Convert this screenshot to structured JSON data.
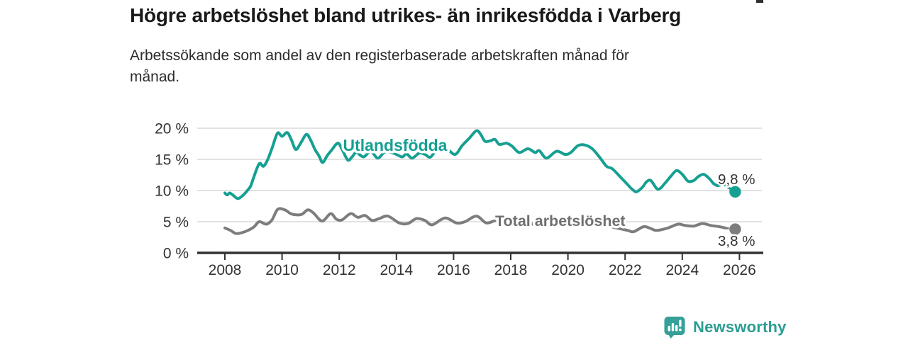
{
  "page": {
    "title": "Högre arbetslöshet bland utrikes- än inrikesfödda i Varberg",
    "subtitle": "Arbetssökande som andel av den registerbaserade arbetskraften månad för\nmånad.",
    "branding": {
      "logo_text": "Newsworthy",
      "logo_icon": "newsworthy-speech-bubble-bar-chart-icon",
      "logo_color": "#35a098",
      "logo_text_color": "#2c9d93"
    }
  },
  "chart_data": {
    "type": "line",
    "title": "Högre arbetslöshet bland utrikes- än inrikesfödda i Varberg",
    "subtitle": "Arbetssökande som andel av den registerbaserade arbetskraften månad för månad.",
    "grid": "horizontal",
    "legend": "inline-labels",
    "x_axis": {
      "ticks": [
        2008,
        2010,
        2012,
        2014,
        2016,
        2018,
        2020,
        2022,
        2024,
        2026
      ],
      "range": [
        2007.85,
        2026.7
      ]
    },
    "y_axis": {
      "ticks": [
        0,
        5,
        10,
        15,
        20
      ],
      "tick_labels": [
        "0 %",
        "5 %",
        "10 %",
        "15 %",
        "20 %"
      ],
      "range": [
        0,
        20
      ],
      "unit": "%"
    },
    "colors": {
      "axis": "#333333",
      "gridline": "#d9d9d9",
      "value_label": "#333333"
    },
    "series": [
      {
        "name": "Utlandsfödda",
        "color": "#16a092",
        "label_color": "#16a092",
        "end_label": "9,8 %",
        "latest_value": 9.8,
        "dashed_tail": true,
        "end_dot": [
          2025.85,
          9.8
        ],
        "points": [
          [
            2008.0,
            9.6
          ],
          [
            2008.08,
            9.3
          ],
          [
            2008.17,
            9.6
          ],
          [
            2008.3,
            9.2
          ],
          [
            2008.45,
            8.7
          ],
          [
            2008.6,
            9.1
          ],
          [
            2008.75,
            9.8
          ],
          [
            2008.9,
            10.7
          ],
          [
            2009.0,
            12.0
          ],
          [
            2009.2,
            14.3
          ],
          [
            2009.35,
            13.9
          ],
          [
            2009.5,
            15.0
          ],
          [
            2009.65,
            16.8
          ],
          [
            2009.84,
            19.2
          ],
          [
            2010.0,
            18.7
          ],
          [
            2010.18,
            19.3
          ],
          [
            2010.32,
            18.2
          ],
          [
            2010.48,
            16.6
          ],
          [
            2010.65,
            17.6
          ],
          [
            2010.85,
            19.0
          ],
          [
            2011.0,
            18.1
          ],
          [
            2011.15,
            16.6
          ],
          [
            2011.3,
            15.5
          ],
          [
            2011.42,
            14.5
          ],
          [
            2011.58,
            15.6
          ],
          [
            2011.72,
            16.4
          ],
          [
            2011.95,
            17.6
          ],
          [
            2012.1,
            16.6
          ],
          [
            2012.3,
            14.9
          ],
          [
            2012.45,
            15.4
          ],
          [
            2012.6,
            16.1
          ],
          [
            2012.85,
            15.4
          ],
          [
            2013.1,
            16.3
          ],
          [
            2013.35,
            15.2
          ],
          [
            2013.6,
            16.2
          ],
          [
            2013.9,
            16.0
          ],
          [
            2014.2,
            15.4
          ],
          [
            2014.35,
            15.9
          ],
          [
            2014.55,
            15.2
          ],
          [
            2014.8,
            16.0
          ],
          [
            2015.0,
            15.8
          ],
          [
            2015.2,
            15.4
          ],
          [
            2015.5,
            17.2
          ],
          [
            2015.75,
            16.8
          ],
          [
            2016.05,
            15.8
          ],
          [
            2016.3,
            17.2
          ],
          [
            2016.55,
            18.4
          ],
          [
            2016.8,
            19.6
          ],
          [
            2016.95,
            19.0
          ],
          [
            2017.1,
            17.9
          ],
          [
            2017.3,
            18.0
          ],
          [
            2017.45,
            18.2
          ],
          [
            2017.6,
            17.4
          ],
          [
            2017.85,
            17.6
          ],
          [
            2018.05,
            17.1
          ],
          [
            2018.3,
            16.1
          ],
          [
            2018.6,
            16.7
          ],
          [
            2018.85,
            16.1
          ],
          [
            2019.0,
            16.4
          ],
          [
            2019.25,
            15.2
          ],
          [
            2019.6,
            16.3
          ],
          [
            2019.9,
            15.8
          ],
          [
            2020.1,
            16.1
          ],
          [
            2020.35,
            17.2
          ],
          [
            2020.6,
            17.3
          ],
          [
            2020.85,
            16.7
          ],
          [
            2021.1,
            15.4
          ],
          [
            2021.35,
            13.9
          ],
          [
            2021.55,
            13.5
          ],
          [
            2021.85,
            12.1
          ],
          [
            2022.1,
            10.9
          ],
          [
            2022.25,
            10.2
          ],
          [
            2022.4,
            9.8
          ],
          [
            2022.6,
            10.5
          ],
          [
            2022.75,
            11.4
          ],
          [
            2022.9,
            11.6
          ],
          [
            2023.15,
            10.2
          ],
          [
            2023.4,
            11.2
          ],
          [
            2023.6,
            12.3
          ],
          [
            2023.8,
            13.2
          ],
          [
            2024.0,
            12.6
          ],
          [
            2024.2,
            11.5
          ],
          [
            2024.4,
            11.6
          ],
          [
            2024.55,
            12.2
          ],
          [
            2024.75,
            12.6
          ],
          [
            2024.95,
            11.9
          ],
          [
            2025.1,
            11.1
          ],
          [
            2025.25,
            10.8
          ],
          [
            2025.4,
            11.1
          ]
        ]
      },
      {
        "name": "Total arbetslöshet",
        "color": "#7d7d7d",
        "label_color": "#6f6f6f",
        "end_label": "3,8 %",
        "latest_value": 3.8,
        "dashed_tail": true,
        "end_dot": [
          2025.85,
          3.8
        ],
        "points": [
          [
            2008.0,
            4.0
          ],
          [
            2008.2,
            3.6
          ],
          [
            2008.4,
            3.1
          ],
          [
            2008.7,
            3.4
          ],
          [
            2009.0,
            4.1
          ],
          [
            2009.2,
            5.0
          ],
          [
            2009.45,
            4.6
          ],
          [
            2009.65,
            5.3
          ],
          [
            2009.85,
            7.0
          ],
          [
            2010.1,
            6.9
          ],
          [
            2010.3,
            6.3
          ],
          [
            2010.5,
            6.1
          ],
          [
            2010.7,
            6.2
          ],
          [
            2010.9,
            6.9
          ],
          [
            2011.1,
            6.4
          ],
          [
            2011.4,
            5.1
          ],
          [
            2011.7,
            6.3
          ],
          [
            2011.9,
            5.4
          ],
          [
            2012.1,
            5.3
          ],
          [
            2012.4,
            6.3
          ],
          [
            2012.65,
            5.7
          ],
          [
            2012.9,
            6.0
          ],
          [
            2013.15,
            5.2
          ],
          [
            2013.4,
            5.5
          ],
          [
            2013.7,
            5.9
          ],
          [
            2014.1,
            4.8
          ],
          [
            2014.4,
            4.7
          ],
          [
            2014.7,
            5.5
          ],
          [
            2015.0,
            5.2
          ],
          [
            2015.25,
            4.5
          ],
          [
            2015.7,
            5.6
          ],
          [
            2016.1,
            4.8
          ],
          [
            2016.4,
            5.0
          ],
          [
            2016.8,
            5.9
          ],
          [
            2017.15,
            4.8
          ],
          [
            2017.5,
            5.2
          ],
          [
            2017.8,
            4.6
          ],
          [
            2018.1,
            4.5
          ],
          [
            2018.35,
            4.2
          ],
          [
            2018.6,
            4.8
          ],
          [
            2018.9,
            4.4
          ],
          [
            2019.2,
            4.2
          ],
          [
            2019.5,
            4.6
          ],
          [
            2019.8,
            4.3
          ],
          [
            2020.1,
            4.7
          ],
          [
            2020.4,
            5.7
          ],
          [
            2020.7,
            5.4
          ],
          [
            2021.0,
            5.1
          ],
          [
            2021.3,
            4.5
          ],
          [
            2021.6,
            4.1
          ],
          [
            2021.9,
            3.8
          ],
          [
            2022.1,
            3.6
          ],
          [
            2022.3,
            3.4
          ],
          [
            2022.65,
            4.2
          ],
          [
            2022.9,
            3.9
          ],
          [
            2023.1,
            3.6
          ],
          [
            2023.5,
            4.0
          ],
          [
            2023.85,
            4.6
          ],
          [
            2024.1,
            4.4
          ],
          [
            2024.4,
            4.3
          ],
          [
            2024.7,
            4.7
          ],
          [
            2025.0,
            4.4
          ],
          [
            2025.3,
            4.2
          ],
          [
            2025.5,
            4.0
          ]
        ]
      }
    ]
  }
}
